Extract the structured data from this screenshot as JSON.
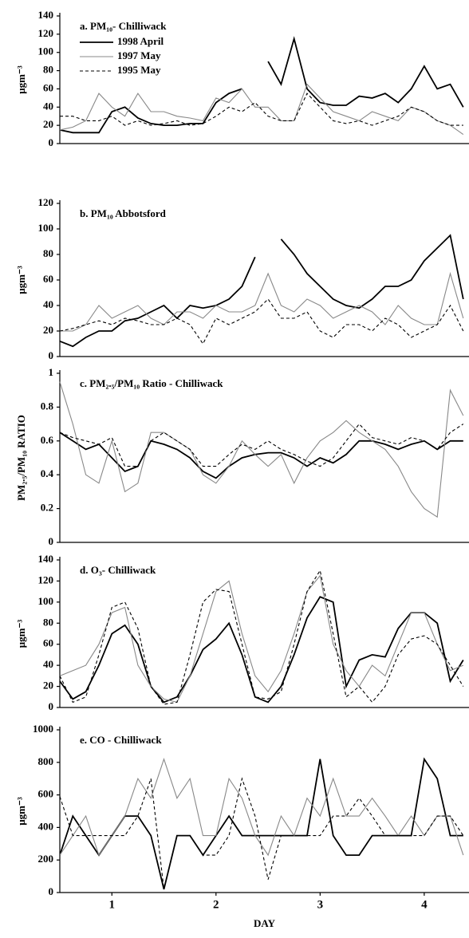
{
  "chart_data": [
    {
      "type": "line",
      "title": "a. PM₁₀- Chilliwack",
      "ylabel": "μgm⁻³",
      "x": [
        0.5,
        0.625,
        0.75,
        0.875,
        1,
        1.125,
        1.25,
        1.375,
        1.5,
        1.625,
        1.75,
        1.875,
        2,
        2.125,
        2.25,
        2.375,
        2.5,
        2.625,
        2.75,
        2.875,
        3,
        3.125,
        3.25,
        3.375,
        3.5,
        3.625,
        3.75,
        3.875,
        4,
        4.125,
        4.25,
        4.375
      ],
      "xlim": [
        0.5,
        4.43
      ],
      "ylim": [
        0,
        140
      ],
      "yticks": [
        0,
        20,
        40,
        60,
        80,
        100,
        120,
        140
      ],
      "legend": "upper left",
      "series": [
        {
          "name": "1998 April",
          "color": "#000000",
          "linestyle": "solid",
          "values": [
            15,
            12,
            12,
            12,
            35,
            40,
            28,
            22,
            20,
            20,
            22,
            22,
            45,
            55,
            60,
            null,
            90,
            65,
            115,
            60,
            45,
            42,
            42,
            52,
            50,
            55,
            45,
            60,
            85,
            60,
            65,
            40
          ]
        },
        {
          "name": "1997 May",
          "color": "#888888",
          "linestyle": "solid",
          "values": [
            15,
            18,
            25,
            55,
            40,
            30,
            55,
            35,
            35,
            30,
            28,
            25,
            50,
            45,
            60,
            40,
            40,
            25,
            25,
            65,
            50,
            35,
            30,
            25,
            35,
            30,
            25,
            40,
            35,
            25,
            20,
            10
          ]
        },
        {
          "name": "1995 May",
          "color": "#000000",
          "linestyle": "dashed",
          "values": [
            30,
            30,
            25,
            25,
            30,
            20,
            25,
            20,
            22,
            25,
            20,
            22,
            30,
            40,
            35,
            45,
            30,
            25,
            25,
            55,
            40,
            25,
            22,
            25,
            20,
            25,
            30,
            40,
            35,
            25,
            20,
            20
          ]
        }
      ]
    },
    {
      "type": "line",
      "title": "b. PM₁₀ Abbotsford",
      "ylabel": "μgm⁻³",
      "x": [
        0.5,
        0.625,
        0.75,
        0.875,
        1,
        1.125,
        1.25,
        1.375,
        1.5,
        1.625,
        1.75,
        1.875,
        2,
        2.125,
        2.25,
        2.375,
        2.5,
        2.625,
        2.75,
        2.875,
        3,
        3.125,
        3.25,
        3.375,
        3.5,
        3.625,
        3.75,
        3.875,
        4,
        4.125,
        4.25,
        4.375
      ],
      "xlim": [
        0.5,
        4.43
      ],
      "ylim": [
        0,
        120
      ],
      "yticks": [
        0,
        20,
        40,
        60,
        80,
        100,
        120
      ],
      "series": [
        {
          "color": "#000000",
          "linestyle": "solid",
          "values": [
            12,
            8,
            15,
            20,
            20,
            28,
            30,
            35,
            40,
            30,
            40,
            38,
            40,
            45,
            55,
            78,
            null,
            92,
            80,
            65,
            55,
            45,
            40,
            38,
            45,
            55,
            55,
            60,
            75,
            85,
            95,
            45
          ]
        },
        {
          "color": "#888888",
          "linestyle": "solid",
          "values": [
            20,
            20,
            25,
            40,
            30,
            35,
            40,
            30,
            25,
            35,
            35,
            30,
            40,
            35,
            35,
            40,
            65,
            40,
            35,
            45,
            40,
            30,
            35,
            40,
            35,
            25,
            40,
            30,
            25,
            25,
            65,
            30
          ]
        },
        {
          "color": "#000000",
          "linestyle": "dashed",
          "values": [
            20,
            22,
            25,
            28,
            25,
            30,
            28,
            25,
            25,
            30,
            25,
            10,
            30,
            25,
            30,
            35,
            45,
            30,
            30,
            35,
            20,
            15,
            25,
            25,
            20,
            30,
            25,
            15,
            20,
            25,
            40,
            20
          ]
        }
      ]
    },
    {
      "type": "line",
      "title": "c. PM₂.₅/PM₁₀ Ratio - Chilliwack",
      "ylabel": "PM₂.₅/PM₁₀ RATIO",
      "x": [
        0.5,
        0.625,
        0.75,
        0.875,
        1,
        1.125,
        1.25,
        1.375,
        1.5,
        1.625,
        1.75,
        1.875,
        2,
        2.125,
        2.25,
        2.375,
        2.5,
        2.625,
        2.75,
        2.875,
        3,
        3.125,
        3.25,
        3.375,
        3.5,
        3.625,
        3.75,
        3.875,
        4,
        4.125,
        4.25,
        4.375
      ],
      "xlim": [
        0.5,
        4.43
      ],
      "ylim": [
        0,
        1
      ],
      "yticks": [
        0,
        0.2,
        0.4,
        0.6,
        0.8,
        1
      ],
      "series": [
        {
          "color": "#000000",
          "linestyle": "solid",
          "values": [
            0.65,
            0.6,
            0.55,
            0.58,
            0.5,
            0.42,
            0.45,
            0.6,
            0.58,
            0.55,
            0.5,
            0.42,
            0.38,
            0.45,
            0.5,
            0.52,
            0.53,
            0.53,
            0.5,
            0.45,
            0.5,
            0.47,
            0.52,
            0.6,
            0.6,
            0.58,
            0.55,
            0.58,
            0.6,
            0.55,
            0.6,
            0.6
          ]
        },
        {
          "color": "#888888",
          "linestyle": "solid",
          "values": [
            0.95,
            0.7,
            0.4,
            0.35,
            0.6,
            0.3,
            0.35,
            0.65,
            0.65,
            0.6,
            0.55,
            0.4,
            0.35,
            0.45,
            0.6,
            0.52,
            0.45,
            0.52,
            0.35,
            0.5,
            0.6,
            0.65,
            0.72,
            0.65,
            0.6,
            0.55,
            0.45,
            0.3,
            0.2,
            0.15,
            0.9,
            0.75
          ]
        },
        {
          "color": "#000000",
          "linestyle": "dashed",
          "values": [
            0.65,
            0.62,
            0.6,
            0.58,
            0.62,
            0.45,
            0.45,
            0.6,
            0.65,
            0.6,
            0.55,
            0.45,
            0.45,
            0.52,
            0.58,
            0.55,
            0.6,
            0.55,
            0.52,
            0.48,
            0.45,
            0.5,
            0.6,
            0.7,
            0.62,
            0.6,
            0.58,
            0.62,
            0.6,
            0.55,
            0.65,
            0.7
          ]
        }
      ]
    },
    {
      "type": "line",
      "title": "d. O₃- Chilliwack",
      "ylabel": "μgm⁻³",
      "x": [
        0.5,
        0.625,
        0.75,
        0.875,
        1,
        1.125,
        1.25,
        1.375,
        1.5,
        1.625,
        1.75,
        1.875,
        2,
        2.125,
        2.25,
        2.375,
        2.5,
        2.625,
        2.75,
        2.875,
        3,
        3.125,
        3.25,
        3.375,
        3.5,
        3.625,
        3.75,
        3.875,
        4,
        4.125,
        4.25,
        4.375
      ],
      "xlim": [
        0.5,
        4.43
      ],
      "ylim": [
        0,
        140
      ],
      "yticks": [
        0,
        20,
        40,
        60,
        80,
        100,
        120,
        140
      ],
      "series": [
        {
          "color": "#000000",
          "linestyle": "solid",
          "values": [
            25,
            8,
            15,
            40,
            70,
            78,
            60,
            20,
            5,
            10,
            30,
            55,
            65,
            80,
            50,
            10,
            5,
            20,
            50,
            85,
            105,
            100,
            20,
            45,
            50,
            48,
            75,
            90,
            90,
            80,
            25,
            45
          ]
        },
        {
          "color": "#888888",
          "linestyle": "solid",
          "values": [
            30,
            35,
            40,
            60,
            90,
            95,
            40,
            20,
            8,
            5,
            30,
            70,
            110,
            120,
            70,
            30,
            15,
            35,
            70,
            110,
            125,
            60,
            35,
            20,
            40,
            30,
            60,
            90,
            90,
            60,
            35,
            40
          ]
        },
        {
          "color": "#000000",
          "linestyle": "dashed",
          "values": [
            30,
            5,
            10,
            50,
            95,
            100,
            75,
            20,
            3,
            5,
            50,
            100,
            112,
            110,
            60,
            10,
            8,
            15,
            60,
            110,
            130,
            70,
            10,
            20,
            5,
            20,
            50,
            65,
            68,
            60,
            40,
            20
          ]
        }
      ]
    },
    {
      "type": "line",
      "title": "e. CO - Chilliwack",
      "ylabel": "μgm⁻³",
      "xlabel": "DAY",
      "x": [
        0.5,
        0.625,
        0.75,
        0.875,
        1,
        1.125,
        1.25,
        1.375,
        1.5,
        1.625,
        1.75,
        1.875,
        2,
        2.125,
        2.25,
        2.375,
        2.5,
        2.625,
        2.75,
        2.875,
        3,
        3.125,
        3.25,
        3.375,
        3.5,
        3.625,
        3.75,
        3.875,
        4,
        4.125,
        4.25,
        4.375
      ],
      "xlim": [
        0.5,
        4.43
      ],
      "xticks": [
        1,
        2,
        3,
        4
      ],
      "ylim": [
        0,
        1000
      ],
      "yticks": [
        0,
        200,
        400,
        600,
        800,
        1000
      ],
      "series": [
        {
          "color": "#000000",
          "linestyle": "solid",
          "values": [
            230,
            470,
            350,
            230,
            350,
            470,
            470,
            350,
            20,
            350,
            350,
            230,
            350,
            470,
            350,
            350,
            350,
            350,
            350,
            350,
            820,
            350,
            230,
            230,
            350,
            350,
            350,
            350,
            820,
            700,
            350,
            350
          ]
        },
        {
          "color": "#888888",
          "linestyle": "solid",
          "values": [
            230,
            350,
            470,
            230,
            350,
            470,
            700,
            580,
            820,
            580,
            700,
            350,
            350,
            700,
            580,
            350,
            230,
            470,
            350,
            580,
            470,
            700,
            470,
            470,
            580,
            470,
            350,
            470,
            350,
            470,
            470,
            230
          ]
        },
        {
          "color": "#000000",
          "linestyle": "dashed",
          "values": [
            590,
            350,
            350,
            350,
            350,
            350,
            470,
            700,
            20,
            350,
            350,
            230,
            230,
            350,
            700,
            470,
            80,
            350,
            350,
            350,
            350,
            470,
            470,
            580,
            470,
            350,
            350,
            350,
            350,
            470,
            470,
            350
          ]
        }
      ]
    }
  ]
}
